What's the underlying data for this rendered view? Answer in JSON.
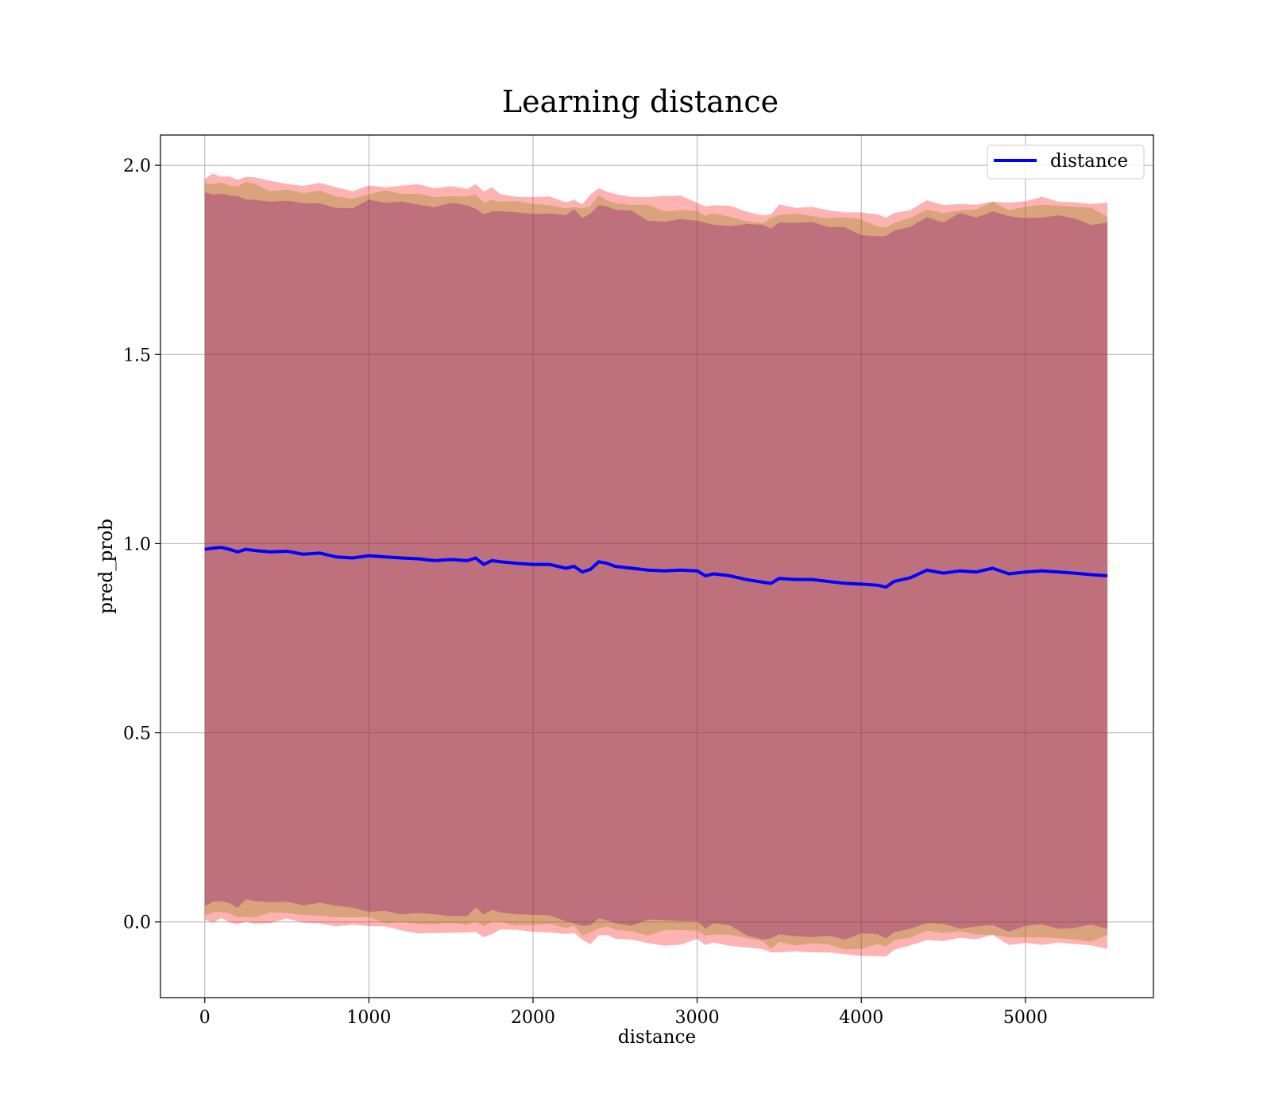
{
  "chart_data": {
    "type": "line",
    "title": "Learning distance",
    "xlabel": "distance",
    "ylabel": "pred_prob",
    "xlim": [
      -270,
      5780
    ],
    "ylim": [
      -0.2,
      2.08
    ],
    "xticks": [
      0,
      1000,
      2000,
      3000,
      4000,
      5000
    ],
    "yticks": [
      0.0,
      0.5,
      1.0,
      1.5,
      2.0
    ],
    "xtick_labels": [
      "0",
      "1000",
      "2000",
      "3000",
      "4000",
      "5000"
    ],
    "ytick_labels": [
      "0.0",
      "0.5",
      "1.0",
      "1.5",
      "2.0"
    ],
    "grid": true,
    "legend": {
      "position": "top-right",
      "entries": [
        "distance"
      ]
    },
    "series": [
      {
        "name": "distance",
        "color": "#0000ff",
        "x": [
          0,
          50,
          100,
          150,
          200,
          250,
          300,
          400,
          500,
          600,
          700,
          800,
          900,
          1000,
          1100,
          1200,
          1300,
          1400,
          1500,
          1600,
          1650,
          1700,
          1750,
          1800,
          1900,
          2000,
          2100,
          2200,
          2250,
          2300,
          2350,
          2400,
          2450,
          2500,
          2600,
          2700,
          2800,
          2900,
          3000,
          3050,
          3100,
          3200,
          3300,
          3400,
          3450,
          3500,
          3600,
          3700,
          3800,
          3900,
          4000,
          4100,
          4150,
          4200,
          4300,
          4400,
          4500,
          4600,
          4700,
          4800,
          4900,
          5000,
          5100,
          5200,
          5300,
          5400,
          5500
        ],
        "y": [
          0.985,
          0.988,
          0.99,
          0.985,
          0.978,
          0.985,
          0.982,
          0.978,
          0.98,
          0.972,
          0.975,
          0.965,
          0.962,
          0.968,
          0.965,
          0.962,
          0.96,
          0.955,
          0.958,
          0.955,
          0.962,
          0.945,
          0.955,
          0.952,
          0.948,
          0.945,
          0.945,
          0.935,
          0.94,
          0.925,
          0.932,
          0.952,
          0.948,
          0.94,
          0.935,
          0.93,
          0.928,
          0.93,
          0.928,
          0.915,
          0.92,
          0.915,
          0.905,
          0.898,
          0.895,
          0.908,
          0.905,
          0.905,
          0.9,
          0.895,
          0.893,
          0.89,
          0.885,
          0.9,
          0.91,
          0.93,
          0.922,
          0.928,
          0.925,
          0.935,
          0.92,
          0.925,
          0.928,
          0.925,
          0.922,
          0.918,
          0.915
        ]
      }
    ],
    "bands": [
      {
        "color": "#ff0000",
        "opacity": 0.3,
        "outer_offset": 0.985
      },
      {
        "color": "#808000",
        "opacity": 0.3,
        "outer_offset": 0.965
      },
      {
        "color": "#800080",
        "opacity": 0.3,
        "outer_offset": 0.94
      }
    ]
  }
}
